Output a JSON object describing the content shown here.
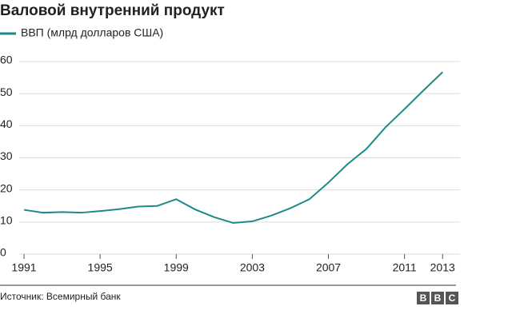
{
  "chart_data": {
    "type": "line",
    "title": "Валовой внутренний продукт",
    "x": [
      1991,
      1992,
      1993,
      1994,
      1995,
      1996,
      1997,
      1998,
      1999,
      2000,
      2001,
      2002,
      2003,
      2004,
      2005,
      2006,
      2007,
      2008,
      2009,
      2010,
      2011,
      2012,
      2013
    ],
    "series": [
      {
        "name": "ВВП (млрд долларов США)",
        "color": "#1d8a8a",
        "values": [
          13.8,
          12.9,
          13.1,
          12.9,
          13.4,
          14.0,
          14.8,
          15.0,
          17.1,
          13.9,
          11.5,
          9.7,
          10.2,
          12.0,
          14.3,
          17.1,
          22.3,
          28.0,
          32.8,
          39.5,
          45.2,
          51.0,
          56.7
        ]
      }
    ],
    "xlim": [
      1991,
      2014
    ],
    "xticks": [
      1991,
      1995,
      1999,
      2003,
      2007,
      2011,
      2013
    ],
    "ylim": [
      0,
      60
    ],
    "yticks": [
      0,
      10,
      20,
      30,
      40,
      50,
      60
    ],
    "grid": true,
    "source": "Источник: Всемирный банк",
    "logo": [
      "B",
      "B",
      "C"
    ]
  }
}
